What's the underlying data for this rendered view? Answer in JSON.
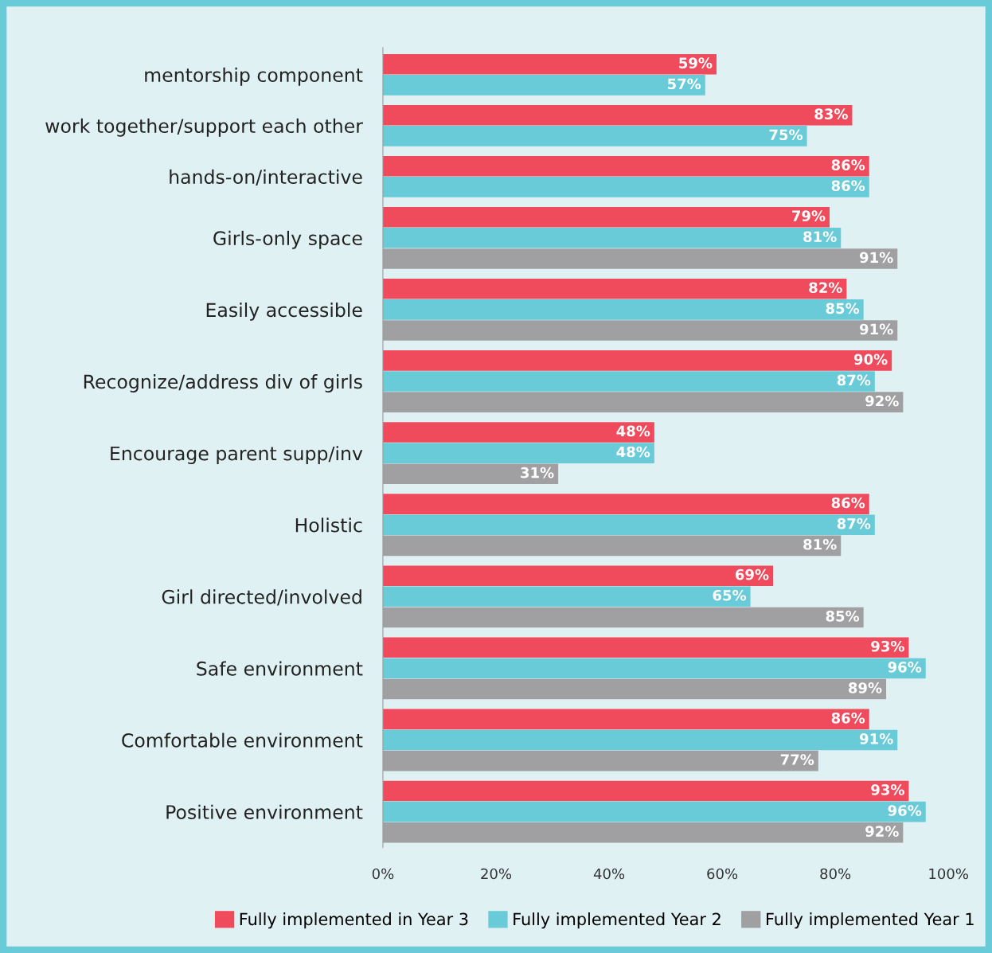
{
  "chart_data": {
    "type": "bar",
    "orientation": "horizontal",
    "categories": [
      "mentorship component",
      "work together/support each other",
      "hands-on/interactive",
      "Girls-only space",
      "Easily accessible",
      "Recognize/address div of girls",
      "Encourage parent supp/inv",
      "Holistic",
      "Girl directed/involved",
      "Safe environment",
      "Comfortable environment",
      "Positive environment"
    ],
    "series": [
      {
        "name": "Fully implemented in Year 3",
        "color": "#ef4b5c",
        "values": [
          59,
          83,
          86,
          79,
          82,
          90,
          48,
          86,
          69,
          93,
          86,
          93
        ],
        "value_labels": [
          "59%",
          "83%",
          "86%",
          "79%",
          "82%",
          "90%",
          "48%",
          "86%",
          "69%",
          "93%",
          "86%",
          "93%"
        ]
      },
      {
        "name": "Fully implemented Year 2",
        "color": "#6acbd8",
        "values": [
          57,
          75,
          86,
          81,
          85,
          87,
          48,
          87,
          65,
          96,
          91,
          96
        ],
        "value_labels": [
          "57%",
          "75%",
          "86%",
          "81%",
          "85%",
          "87%",
          "48%",
          "87%",
          "65%",
          "96%",
          "91%",
          "96%"
        ]
      },
      {
        "name": "Fully implemented Year 1",
        "color": "#a0a0a2",
        "values": [
          null,
          null,
          null,
          91,
          91,
          92,
          31,
          81,
          85,
          89,
          77,
          92
        ],
        "value_labels": [
          null,
          null,
          null,
          "91%",
          "91%",
          "92%",
          "31%",
          "81%",
          "85%",
          "89%",
          "77%",
          "92%"
        ]
      }
    ],
    "xlim": [
      0,
      100
    ],
    "xticks": [
      {
        "value": 0,
        "label": "0%"
      },
      {
        "value": 20,
        "label": "20%"
      },
      {
        "value": 40,
        "label": "40%"
      },
      {
        "value": 60,
        "label": "60%"
      },
      {
        "value": 80,
        "label": "80%"
      },
      {
        "value": 100,
        "label": "100%"
      }
    ],
    "legend": "bottom",
    "grid": false
  }
}
